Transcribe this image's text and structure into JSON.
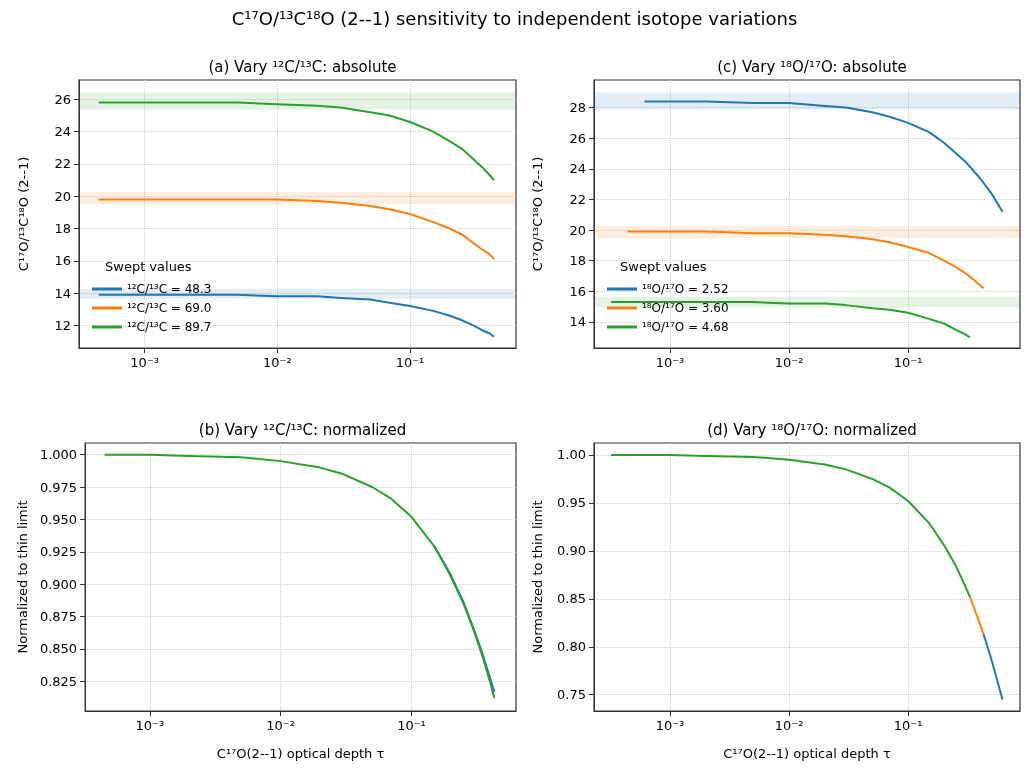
{
  "chart_data": [
    {
      "type": "line",
      "title": "(a) Vary ¹²C/¹³C: absolute",
      "ylabel": "C¹⁷O/¹³C¹⁸O (2--1)",
      "legend_title": "Swept values",
      "annotations": [
        "C¹⁷O/¹³C¹⁸O (2--1) sensitivity to independent isotope variations"
      ],
      "x": [
        0.00045,
        0.001,
        0.002,
        0.005,
        0.01,
        0.02,
        0.03,
        0.05,
        0.07,
        0.1,
        0.15,
        0.2,
        0.25,
        0.3,
        0.35,
        0.4,
        0.43
      ],
      "series": [
        {
          "name": "¹²C/¹³C = 48.3",
          "color": "#1f77b4",
          "values": [
            13.9,
            13.9,
            13.9,
            13.9,
            13.8,
            13.8,
            13.7,
            13.6,
            13.4,
            13.2,
            12.9,
            12.6,
            12.3,
            12.0,
            11.7,
            11.5,
            11.3
          ]
        },
        {
          "name": "¹²C/¹³C = 69.0",
          "color": "#ff7f0e",
          "values": [
            19.8,
            19.8,
            19.8,
            19.8,
            19.8,
            19.7,
            19.6,
            19.4,
            19.2,
            18.9,
            18.4,
            18.0,
            17.6,
            17.1,
            16.7,
            16.4,
            16.1
          ]
        },
        {
          "name": "¹²C/¹³C = 89.7",
          "color": "#2ca02c",
          "values": [
            25.8,
            25.8,
            25.8,
            25.8,
            25.7,
            25.6,
            25.5,
            25.2,
            25.0,
            24.6,
            24.0,
            23.4,
            22.9,
            22.3,
            21.8,
            21.3,
            21.0
          ]
        }
      ],
      "bands": [
        {
          "axis": "y",
          "from": 13.65,
          "to": 14.27,
          "color": "#1f77b4"
        },
        {
          "axis": "y",
          "from": 19.5,
          "to": 20.27,
          "color": "#ff7f0e"
        },
        {
          "axis": "y",
          "from": 25.37,
          "to": 26.42,
          "color": "#2ca02c"
        }
      ],
      "log": "x",
      "xlim": [
        0.00032,
        0.63
      ],
      "xticks": [
        {
          "value": 0.001,
          "label": "10⁻³"
        },
        {
          "value": 0.01,
          "label": "10⁻²"
        },
        {
          "value": 0.1,
          "label": "10⁻¹"
        }
      ],
      "ylim": [
        10.6,
        27.2
      ],
      "yticks": [
        12,
        14,
        16,
        18,
        20,
        22,
        24,
        26
      ],
      "grid": true,
      "legend": "bottom left",
      "marker": "none",
      "line_style": "solid"
    },
    {
      "type": "line",
      "title": "(c) Vary ¹⁸O/¹⁷O: absolute",
      "ylabel": "C¹⁷O/¹³C¹⁸O (2--1)",
      "legend_title": "Swept values",
      "series": [
        {
          "name": "¹⁸O/¹⁷O = 2.52",
          "color": "#1f77b4",
          "x": [
            0.00061,
            0.001,
            0.002,
            0.005,
            0.01,
            0.02,
            0.03,
            0.05,
            0.07,
            0.1,
            0.15,
            0.2,
            0.3,
            0.4,
            0.5,
            0.62
          ],
          "values": [
            28.4,
            28.4,
            28.4,
            28.3,
            28.3,
            28.1,
            28.0,
            27.7,
            27.4,
            27.0,
            26.4,
            25.7,
            24.5,
            23.4,
            22.4,
            21.2
          ]
        },
        {
          "name": "¹⁸O/¹⁷O = 3.60",
          "color": "#ff7f0e",
          "x": [
            0.00044,
            0.001,
            0.002,
            0.005,
            0.01,
            0.02,
            0.03,
            0.05,
            0.07,
            0.1,
            0.15,
            0.2,
            0.25,
            0.3,
            0.35,
            0.4,
            0.43
          ],
          "values": [
            19.9,
            19.9,
            19.9,
            19.8,
            19.8,
            19.7,
            19.6,
            19.4,
            19.2,
            18.9,
            18.5,
            18.0,
            17.6,
            17.2,
            16.8,
            16.4,
            16.2
          ]
        },
        {
          "name": "¹⁸O/¹⁷O = 4.68",
          "color": "#2ca02c",
          "x": [
            0.00032,
            0.001,
            0.002,
            0.005,
            0.01,
            0.02,
            0.03,
            0.05,
            0.07,
            0.1,
            0.15,
            0.2,
            0.25,
            0.3,
            0.33
          ],
          "values": [
            15.3,
            15.3,
            15.3,
            15.3,
            15.2,
            15.2,
            15.1,
            14.9,
            14.8,
            14.6,
            14.2,
            13.9,
            13.5,
            13.2,
            13.0
          ]
        }
      ],
      "bands": [
        {
          "axis": "y",
          "from": 27.87,
          "to": 28.98,
          "color": "#1f77b4"
        },
        {
          "axis": "y",
          "from": 19.48,
          "to": 20.26,
          "color": "#ff7f0e"
        },
        {
          "axis": "y",
          "from": 14.96,
          "to": 15.64,
          "color": "#2ca02c"
        }
      ],
      "log": "x",
      "xlim": [
        0.00023,
        0.87
      ],
      "xticks": [
        {
          "value": 0.001,
          "label": "10⁻³"
        },
        {
          "value": 0.01,
          "label": "10⁻²"
        },
        {
          "value": 0.1,
          "label": "10⁻¹"
        }
      ],
      "ylim": [
        12.3,
        29.8
      ],
      "yticks": [
        14,
        16,
        18,
        20,
        22,
        24,
        26,
        28
      ],
      "grid": true,
      "legend": "bottom left",
      "marker": "none",
      "line_style": "solid"
    },
    {
      "type": "line",
      "title": "(b) Vary ¹²C/¹³C: normalized",
      "xlabel": "C¹⁷O(2--1) optical depth τ",
      "ylabel": "Normalized to thin limit",
      "x": [
        0.00045,
        0.001,
        0.002,
        0.005,
        0.01,
        0.02,
        0.03,
        0.05,
        0.07,
        0.1,
        0.15,
        0.2,
        0.25,
        0.3,
        0.35,
        0.4,
        0.43
      ],
      "series": [
        {
          "color": "#1f77b4",
          "x": [
            0.15,
            0.2,
            0.25,
            0.3,
            0.35,
            0.4,
            0.43
          ],
          "values": [
            0.929,
            0.907,
            0.886,
            0.865,
            0.846,
            0.827,
            0.817
          ]
        },
        {
          "color": "#2ca02c",
          "values": [
            1.0,
            1.0,
            0.999,
            0.998,
            0.995,
            0.99,
            0.985,
            0.975,
            0.966,
            0.952,
            0.929,
            0.906,
            0.885,
            0.864,
            0.844,
            0.824,
            0.812
          ]
        }
      ],
      "log": "x",
      "xlim": [
        0.00032,
        0.63
      ],
      "xticks": [
        {
          "value": 0.001,
          "label": "10⁻³"
        },
        {
          "value": 0.01,
          "label": "10⁻²"
        },
        {
          "value": 0.1,
          "label": "10⁻¹"
        }
      ],
      "ylim": [
        0.802,
        1.009
      ],
      "yticks": [
        {
          "value": 0.825,
          "label": "0.825"
        },
        {
          "value": 0.85,
          "label": "0.850"
        },
        {
          "value": 0.875,
          "label": "0.875"
        },
        {
          "value": 0.9,
          "label": "0.900"
        },
        {
          "value": 0.925,
          "label": "0.925"
        },
        {
          "value": 0.95,
          "label": "0.950"
        },
        {
          "value": 0.975,
          "label": "0.975"
        },
        {
          "value": 1,
          "label": "1.000"
        }
      ],
      "grid": true,
      "marker": "none",
      "line_style": "solid"
    },
    {
      "type": "line",
      "title": "(d) Vary ¹⁸O/¹⁷O: normalized",
      "xlabel": "C¹⁷O(2--1) optical depth τ",
      "ylabel": "Normalized to thin limit",
      "series": [
        {
          "color": "#1f77b4",
          "x": [
            0.43,
            0.5,
            0.62
          ],
          "values": [
            0.813,
            0.787,
            0.745
          ]
        },
        {
          "color": "#ff7f0e",
          "x": [
            0.33,
            0.35,
            0.4,
            0.43
          ],
          "values": [
            0.852,
            0.844,
            0.824,
            0.813
          ]
        },
        {
          "color": "#2ca02c",
          "x": [
            0.00032,
            0.001,
            0.002,
            0.005,
            0.01,
            0.02,
            0.03,
            0.05,
            0.07,
            0.1,
            0.15,
            0.2,
            0.25,
            0.3,
            0.33
          ],
          "values": [
            1.0,
            1.0,
            0.999,
            0.998,
            0.995,
            0.99,
            0.985,
            0.975,
            0.966,
            0.952,
            0.929,
            0.906,
            0.885,
            0.864,
            0.852
          ]
        }
      ],
      "log": "x",
      "xlim": [
        0.00023,
        0.87
      ],
      "xticks": [
        {
          "value": 0.001,
          "label": "10⁻³"
        },
        {
          "value": 0.01,
          "label": "10⁻²"
        },
        {
          "value": 0.1,
          "label": "10⁻¹"
        }
      ],
      "ylim": [
        0.733,
        1.0125
      ],
      "yticks": [
        {
          "value": 0.75,
          "label": "0.75"
        },
        {
          "value": 0.8,
          "label": "0.80"
        },
        {
          "value": 0.85,
          "label": "0.85"
        },
        {
          "value": 0.9,
          "label": "0.90"
        },
        {
          "value": 0.95,
          "label": "0.95"
        },
        {
          "value": 1,
          "label": "1.00"
        }
      ],
      "grid": true,
      "marker": "none",
      "line_style": "solid"
    }
  ]
}
